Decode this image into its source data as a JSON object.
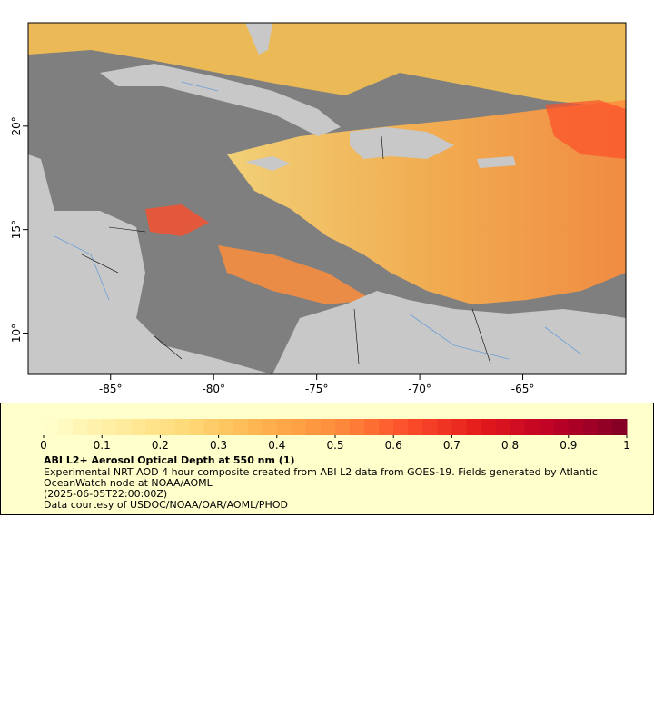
{
  "map": {
    "lon_ticks": [
      "-85°",
      "-80°",
      "-75°",
      "-70°",
      "-65°"
    ],
    "lat_ticks": [
      "20°",
      "15°",
      "10°"
    ],
    "lon_range": [
      -89,
      -60
    ],
    "lat_range": [
      8,
      25
    ],
    "colors": {
      "land": "#c8c8c8",
      "no_data": "#7f7f7f",
      "rivers": "#6a9fd8",
      "borders": "#000000"
    }
  },
  "legend": {
    "scale_min": 0,
    "scale_max": 1,
    "tick_labels": [
      "0",
      "0.1",
      "0.2",
      "0.3",
      "0.4",
      "0.5",
      "0.6",
      "0.7",
      "0.8",
      "0.9",
      "1"
    ],
    "colormap": [
      "#ffffcc",
      "#ffeda0",
      "#fed976",
      "#feb24c",
      "#fd8d3c",
      "#fc4e2a",
      "#e31a1c",
      "#bd0026",
      "#800026"
    ],
    "title": "ABI L2+ Aerosol Optical Depth at 550 nm (1)",
    "line1": "Experimental NRT AOD 4 hour composite created from ABI L2 data from GOES-19. Fields generated by Atlantic OceanWatch node at NOAA/AOML",
    "line2": "(2025-06-05T22:00:00Z)",
    "line3": "Data courtesy of USDOC/NOAA/OAR/AOML/PHOD"
  }
}
